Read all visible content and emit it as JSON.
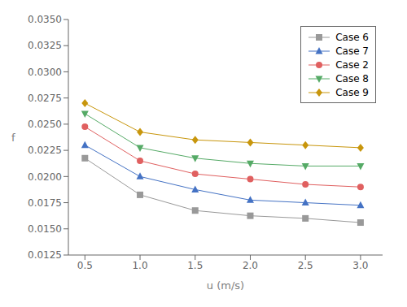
{
  "chart_data": {
    "type": "line",
    "x_label": "u (m/s)",
    "y_label": "f",
    "x": [
      0.5,
      1.0,
      1.5,
      2.0,
      2.5,
      3.0
    ],
    "series": [
      {
        "name": "Case 6",
        "color": "#999999",
        "marker": "square",
        "line_style": "solid",
        "values": [
          0.02175,
          0.01825,
          0.01675,
          0.01625,
          0.016,
          0.0156
        ]
      },
      {
        "name": "Case 7",
        "color": "#4472C4",
        "marker": "triangle",
        "line_style": "solid",
        "values": [
          0.023,
          0.02,
          0.01875,
          0.01775,
          0.0175,
          0.01725
        ]
      },
      {
        "name": "Case 2",
        "color": "#E06060",
        "marker": "circle",
        "line_style": "solid",
        "values": [
          0.02475,
          0.0215,
          0.02025,
          0.01975,
          0.01925,
          0.019
        ]
      },
      {
        "name": "Case 8",
        "color": "#55AA66",
        "marker": "triangle_down",
        "line_style": "solid",
        "values": [
          0.026,
          0.02275,
          0.02175,
          0.02125,
          0.021,
          0.021
        ]
      },
      {
        "name": "Case 9",
        "color": "#C8960C",
        "marker": "diamond",
        "line_style": "solid",
        "values": [
          0.027,
          0.02425,
          0.0235,
          0.02325,
          0.023,
          0.02275
        ]
      }
    ],
    "xlim": [
      0.35,
      3.2
    ],
    "ylim": [
      0.0125,
      0.035
    ],
    "xticks": [
      0.5,
      {
        "value": 1.0,
        "label": "1.0"
      },
      1.5,
      {
        "value": 2.0,
        "label": "2.0"
      },
      2.5,
      {
        "value": 3.0,
        "label": "3.0"
      }
    ],
    "yticks": [
      0.0125,
      {
        "value": 0.015,
        "label": "0.0150"
      },
      0.0175,
      {
        "value": 0.02,
        "label": "0.0200"
      },
      0.0225,
      {
        "value": 0.025,
        "label": "0.0250"
      },
      0.0275,
      {
        "value": 0.03,
        "label": "0.0300"
      },
      0.0325,
      {
        "value": 0.035,
        "label": "0.0350"
      }
    ],
    "grid": false,
    "legend": "upper right"
  }
}
